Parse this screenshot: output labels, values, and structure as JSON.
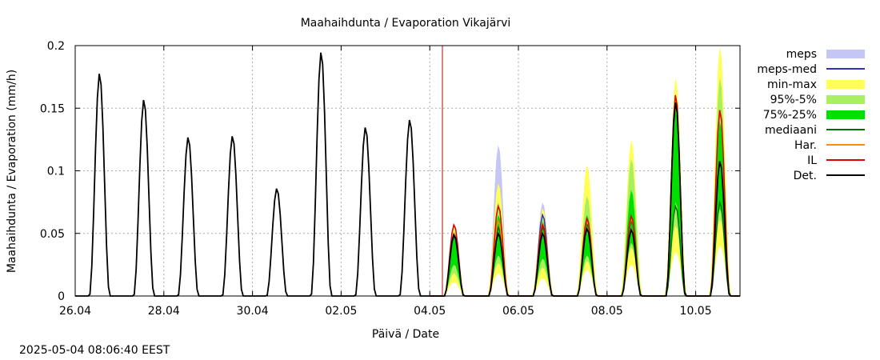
{
  "chart_data": {
    "type": "area",
    "title": "Maahaihdunta / Evaporation  Vikajärvi",
    "xlabel": "Päivä / Date",
    "ylabel": "Maahaihdunta / Evaporation (mm/h)",
    "x_start": "26.04",
    "x_end": "11.05",
    "forecast_start": "04.05 08:00",
    "ylim": [
      0,
      0.2
    ],
    "yticks": [
      "0",
      "0.05",
      "0.1",
      "0.15",
      "0.2"
    ],
    "xticks": [
      "26.04",
      "28.04",
      "30.04",
      "02.05",
      "04.05",
      "06.05",
      "08.05",
      "10.05"
    ],
    "grid": true,
    "legend_position": "right",
    "legend": [
      {
        "label": "meps",
        "kind": "band",
        "color": "#c4c6f5"
      },
      {
        "label": "meps-med",
        "kind": "line",
        "color": "#3030c0"
      },
      {
        "label": "min-max",
        "kind": "band",
        "color": "#ffff55"
      },
      {
        "label": "95%-5%",
        "kind": "band",
        "color": "#a8f060"
      },
      {
        "label": "75%-25%",
        "kind": "band",
        "color": "#00e000"
      },
      {
        "label": "mediaani",
        "kind": "line",
        "color": "#007000"
      },
      {
        "label": "Har.",
        "kind": "line",
        "color": "#ff8c00"
      },
      {
        "label": "IL",
        "kind": "line",
        "color": "#dd0000"
      },
      {
        "label": "Det.",
        "kind": "line",
        "color": "#000000"
      }
    ],
    "observed_daily_peaks": [
      0.178,
      0.157,
      0.127,
      0.128,
      0.086,
      0.195,
      0.135,
      0.141
    ],
    "forecast_daily_peaks": {
      "meps": [
        0.058,
        0.121,
        0.075,
        null,
        null,
        null,
        null
      ],
      "meps_med": [
        0.05,
        0.055,
        0.065,
        null,
        null,
        null,
        null
      ],
      "min_max": [
        0.055,
        0.09,
        0.07,
        0.105,
        0.125,
        0.175,
        0.2
      ],
      "p95_p5": [
        0.052,
        0.075,
        0.065,
        0.08,
        0.11,
        0.16,
        0.175
      ],
      "p75_p25": [
        0.05,
        0.065,
        0.06,
        0.065,
        0.085,
        0.15,
        0.14
      ],
      "mediaani": [
        0.048,
        0.055,
        0.055,
        0.058,
        0.06,
        0.072,
        0.075
      ],
      "har": [
        0.05,
        0.06,
        0.058,
        0.06,
        0.062,
        0.16,
        0.148
      ],
      "il": [
        0.057,
        0.072,
        0.057,
        0.062,
        0.064,
        0.161,
        0.149
      ],
      "det": [
        0.049,
        0.05,
        0.05,
        0.054,
        0.053,
        0.155,
        0.108
      ]
    }
  },
  "footer": {
    "timestamp": "2025-05-04  08:06:40 EEST"
  }
}
